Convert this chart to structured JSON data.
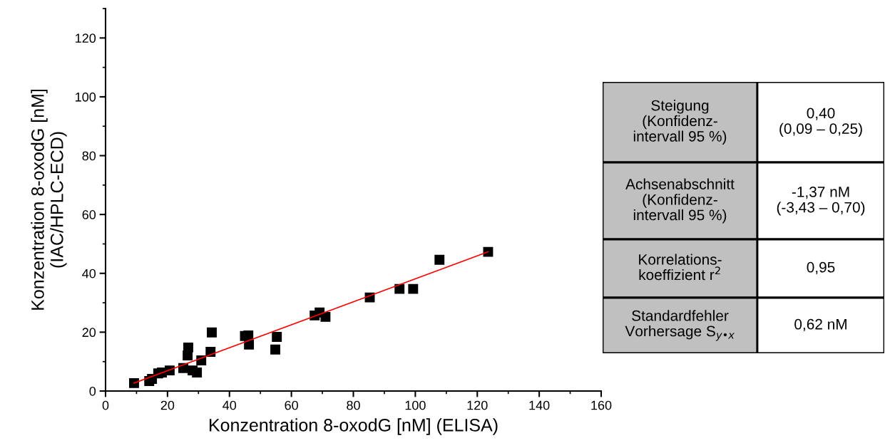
{
  "chart_data": {
    "type": "scatter",
    "xlabel": "Konzentration 8-oxodG [nM] (ELISA)",
    "ylabel": "Konzentration 8-oxodG [nM]\n(IAC/HPLC-ECD)",
    "xlim": [
      0,
      160
    ],
    "ylim": [
      0,
      130
    ],
    "xticks": [
      0,
      20,
      40,
      60,
      80,
      100,
      120,
      140,
      160
    ],
    "yticks": [
      0,
      20,
      40,
      60,
      80,
      100,
      120
    ],
    "grid": false,
    "marker": "square",
    "series": [
      {
        "color": "#000000",
        "x": [
          9.2,
          14.1,
          15,
          17,
          18.2,
          20.7,
          25.1,
          26.5,
          26.7,
          28.1,
          29.5,
          30.9,
          33.9,
          34.3,
          45,
          46.1,
          46.3,
          54.8,
          55.3,
          67.5,
          69.1,
          71,
          85.3,
          94.9,
          99.3,
          107.8,
          123.5
        ],
        "values": [
          2.7,
          3.4,
          4.1,
          6,
          6.3,
          7,
          7.8,
          12.1,
          14.8,
          7,
          6.3,
          10.4,
          13.3,
          19.9,
          18.7,
          18.9,
          15.8,
          14.1,
          18.4,
          25.7,
          26.7,
          25.2,
          31.8,
          34.7,
          34.7,
          44.6,
          47.3
        ]
      },
      {
        "type": "line",
        "color": "#ff0000",
        "marker": "none",
        "line_style": "solid",
        "x": [
          9.2,
          123.5
        ],
        "values": [
          2.7,
          47.3
        ]
      }
    ],
    "annotations": [
      "Steigung\n(Konfidenz-\nintervall 95 %)",
      "0,40\n(0,09 – 0,25)",
      "Achsenabschnitt\n(Konfidenz-\nintervall 95 %)",
      "-1,37 nM\n(-3,43 – 0,70)",
      "Korrelations-\nkoeffizient r$^{2}$",
      "0,95",
      "Standardfehler\nVorhersage S$_{y•x}$",
      "0,62 nM"
    ]
  }
}
